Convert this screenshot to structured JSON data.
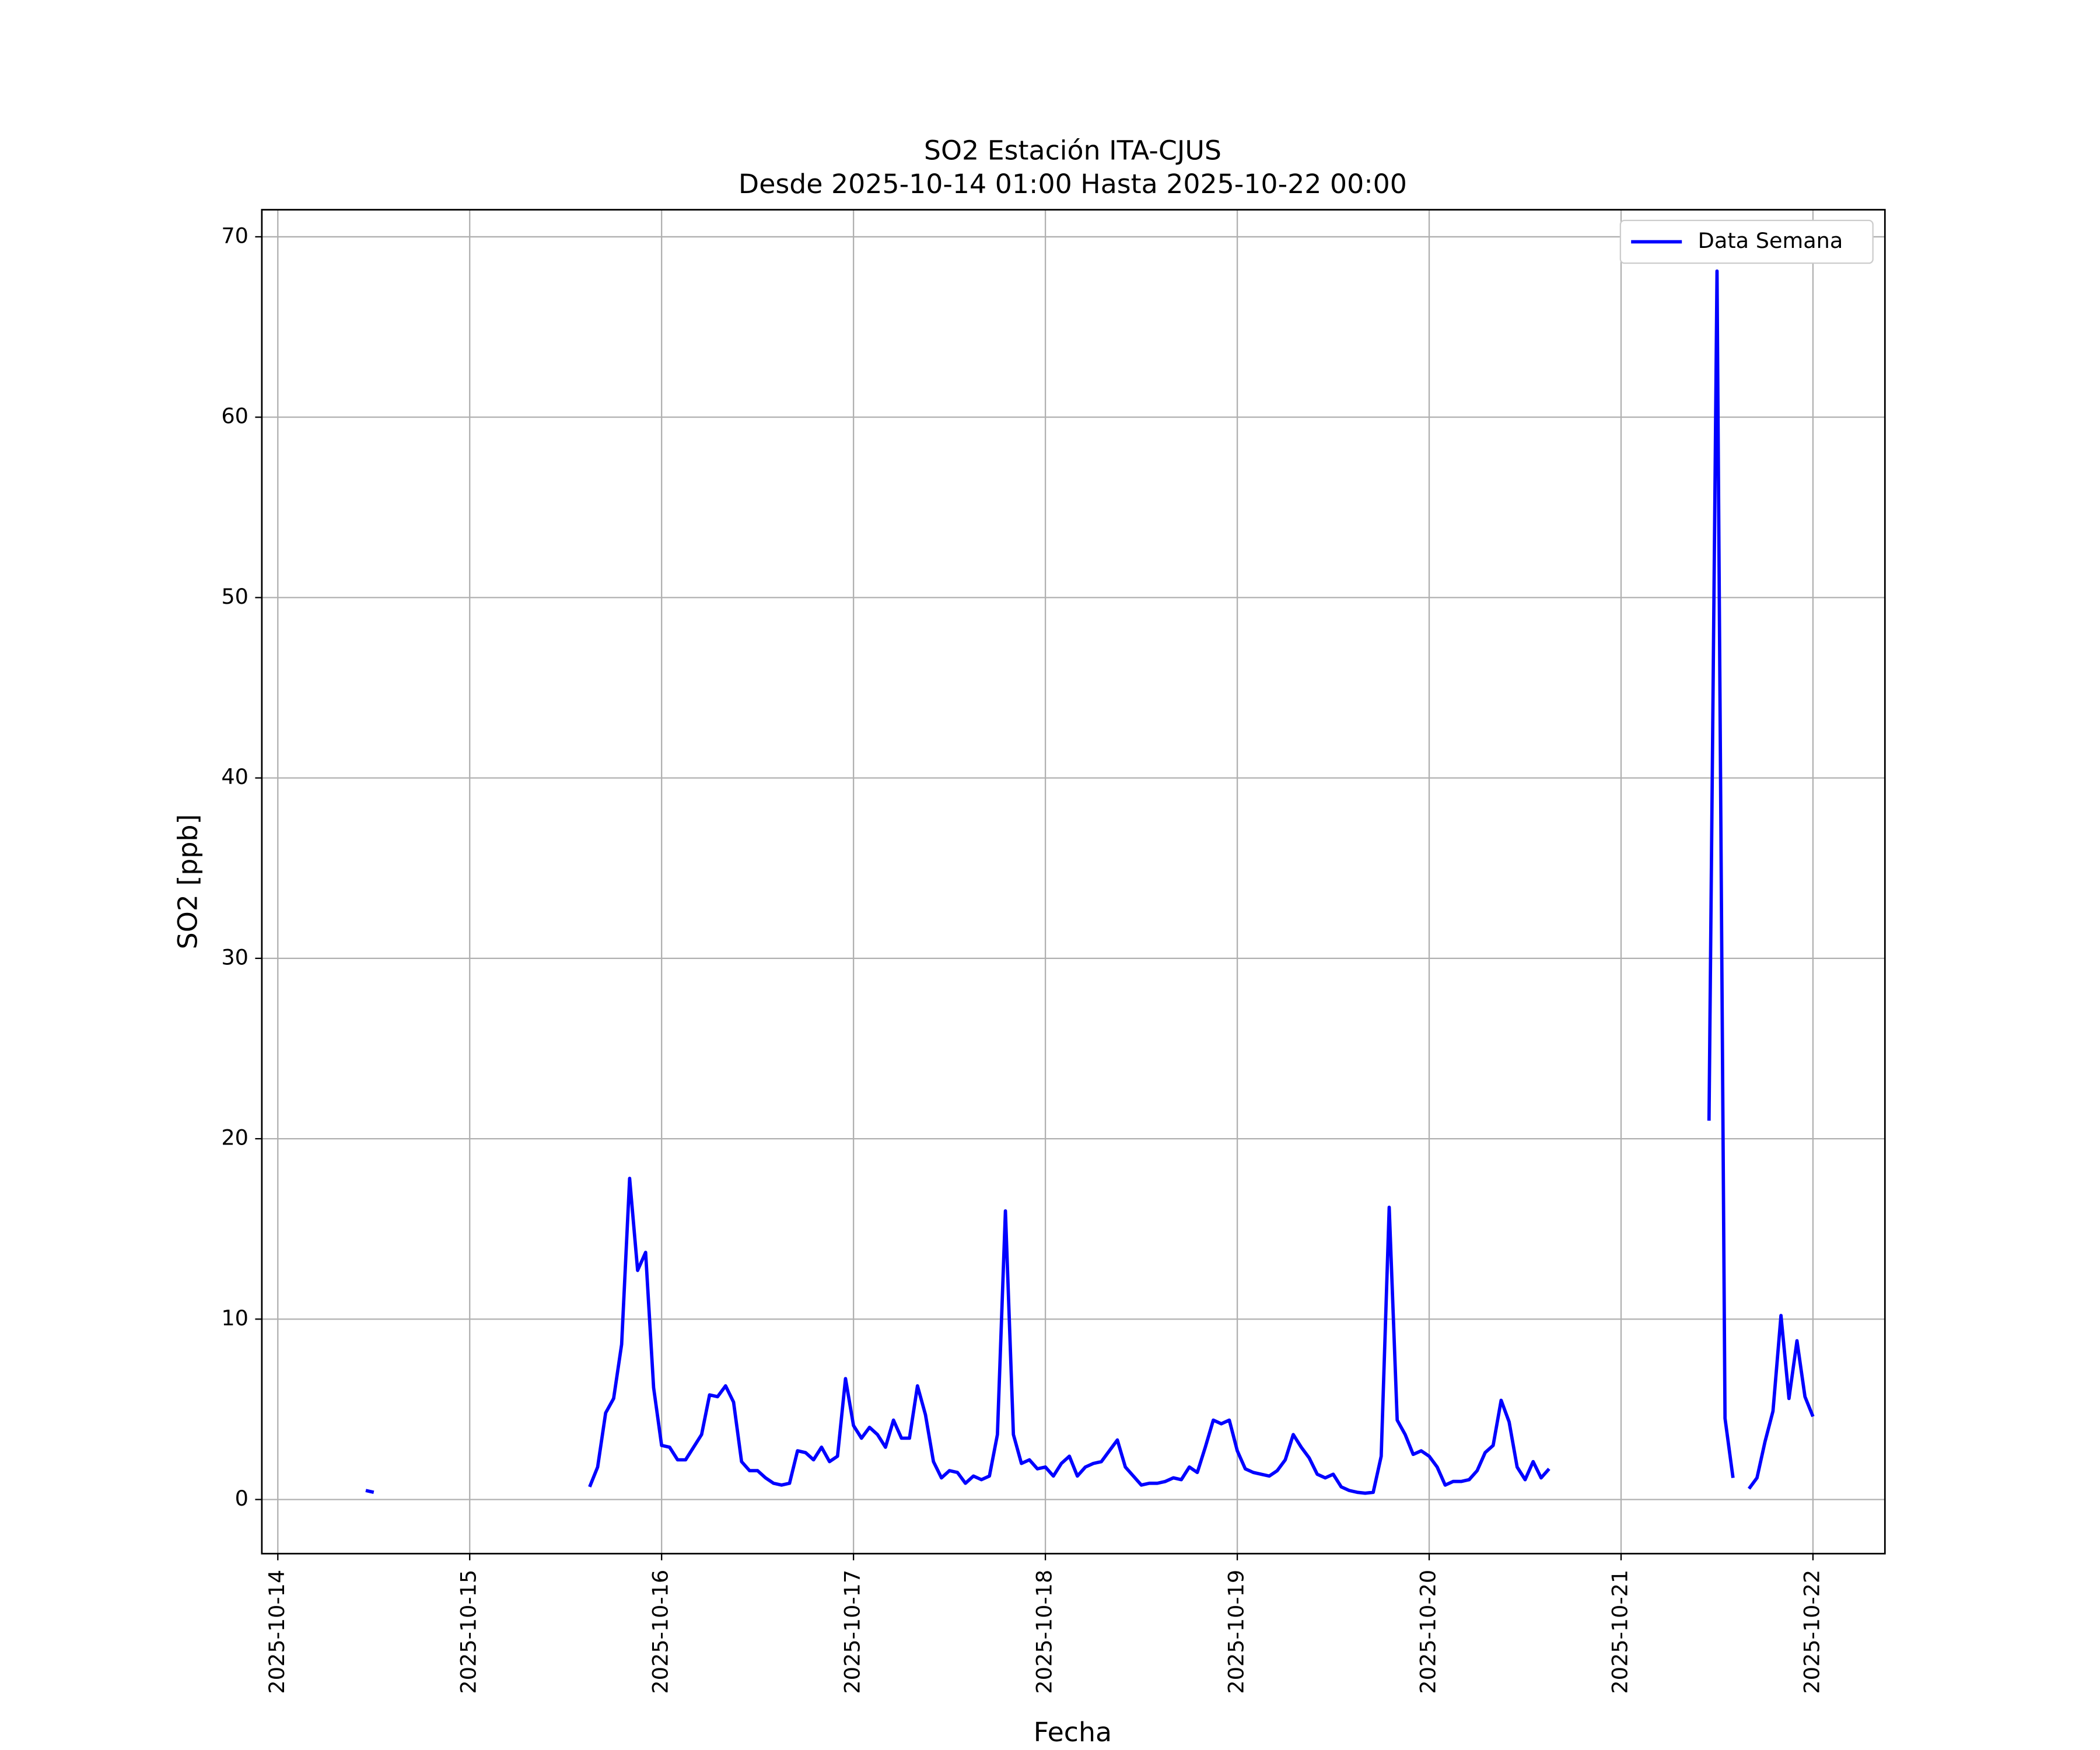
{
  "chart_data": {
    "type": "line",
    "title": "SO2 Estación ITA-CJUS",
    "subtitle": "Desde 2025-10-14 01:00 Hasta 2025-10-22 00:00",
    "xlabel": "Fecha",
    "ylabel": "SO2 [ppb]",
    "x": [
      "2025-10-14 11:00",
      "2025-10-14 12:00",
      "2025-10-14 13:00",
      "2025-10-15 15:00",
      "2025-10-15 16:00",
      "2025-10-15 17:00",
      "2025-10-15 18:00",
      "2025-10-15 19:00",
      "2025-10-15 20:00",
      "2025-10-15 21:00",
      "2025-10-15 22:00",
      "2025-10-15 23:00",
      "2025-10-16 00:00",
      "2025-10-16 01:00",
      "2025-10-16 02:00",
      "2025-10-16 03:00",
      "2025-10-16 04:00",
      "2025-10-16 05:00",
      "2025-10-16 06:00",
      "2025-10-16 07:00",
      "2025-10-16 08:00",
      "2025-10-16 09:00",
      "2025-10-16 10:00",
      "2025-10-16 11:00",
      "2025-10-16 12:00",
      "2025-10-16 13:00",
      "2025-10-16 14:00",
      "2025-10-16 15:00",
      "2025-10-16 16:00",
      "2025-10-16 17:00",
      "2025-10-16 18:00",
      "2025-10-16 19:00",
      "2025-10-16 20:00",
      "2025-10-16 21:00",
      "2025-10-16 22:00",
      "2025-10-16 23:00",
      "2025-10-17 00:00",
      "2025-10-17 01:00",
      "2025-10-17 02:00",
      "2025-10-17 03:00",
      "2025-10-17 04:00",
      "2025-10-17 05:00",
      "2025-10-17 06:00",
      "2025-10-17 07:00",
      "2025-10-17 08:00",
      "2025-10-17 09:00",
      "2025-10-17 10:00",
      "2025-10-17 11:00",
      "2025-10-17 12:00",
      "2025-10-17 13:00",
      "2025-10-17 14:00",
      "2025-10-17 15:00",
      "2025-10-17 16:00",
      "2025-10-17 17:00",
      "2025-10-17 18:00",
      "2025-10-17 19:00",
      "2025-10-17 20:00",
      "2025-10-17 21:00",
      "2025-10-17 22:00",
      "2025-10-17 23:00",
      "2025-10-18 00:00",
      "2025-10-18 01:00",
      "2025-10-18 02:00",
      "2025-10-18 03:00",
      "2025-10-18 04:00",
      "2025-10-18 05:00",
      "2025-10-18 06:00",
      "2025-10-18 07:00",
      "2025-10-18 08:00",
      "2025-10-18 09:00",
      "2025-10-18 10:00",
      "2025-10-18 11:00",
      "2025-10-18 12:00",
      "2025-10-18 13:00",
      "2025-10-18 14:00",
      "2025-10-18 15:00",
      "2025-10-18 16:00",
      "2025-10-18 17:00",
      "2025-10-18 18:00",
      "2025-10-18 19:00",
      "2025-10-18 20:00",
      "2025-10-18 21:00",
      "2025-10-18 22:00",
      "2025-10-18 23:00",
      "2025-10-19 00:00",
      "2025-10-19 01:00",
      "2025-10-19 02:00",
      "2025-10-19 03:00",
      "2025-10-19 04:00",
      "2025-10-19 05:00",
      "2025-10-19 06:00",
      "2025-10-19 07:00",
      "2025-10-19 08:00",
      "2025-10-19 09:00",
      "2025-10-19 10:00",
      "2025-10-19 11:00",
      "2025-10-19 12:00",
      "2025-10-19 13:00",
      "2025-10-19 14:00",
      "2025-10-19 15:00",
      "2025-10-19 16:00",
      "2025-10-19 17:00",
      "2025-10-19 18:00",
      "2025-10-19 19:00",
      "2025-10-19 20:00",
      "2025-10-19 21:00",
      "2025-10-19 22:00",
      "2025-10-19 23:00",
      "2025-10-20 00:00",
      "2025-10-20 01:00",
      "2025-10-20 02:00",
      "2025-10-20 03:00",
      "2025-10-20 04:00",
      "2025-10-20 05:00",
      "2025-10-20 06:00",
      "2025-10-20 07:00",
      "2025-10-20 08:00",
      "2025-10-20 09:00",
      "2025-10-20 10:00",
      "2025-10-20 11:00",
      "2025-10-20 12:00",
      "2025-10-20 13:00",
      "2025-10-20 14:00",
      "2025-10-20 15:00",
      "2025-10-20 16:00",
      "2025-10-21 11:00",
      "2025-10-21 12:00",
      "2025-10-21 13:00",
      "2025-10-21 14:00",
      "2025-10-21 15:00",
      "2025-10-21 16:00",
      "2025-10-21 17:00",
      "2025-10-21 18:00",
      "2025-10-21 19:00",
      "2025-10-21 20:00",
      "2025-10-21 21:00",
      "2025-10-21 22:00",
      "2025-10-21 23:00",
      "2025-10-22 00:00"
    ],
    "series": [
      {
        "name": "Data Semana",
        "color": "#0000ff",
        "values": [
          0.5,
          0.4,
          null,
          0.7,
          1.8,
          4.8,
          5.6,
          8.6,
          17.8,
          12.7,
          13.7,
          6.2,
          3.0,
          2.9,
          2.2,
          2.2,
          2.9,
          3.6,
          5.8,
          5.7,
          6.3,
          5.4,
          2.1,
          1.6,
          1.6,
          1.2,
          0.9,
          0.8,
          0.9,
          2.7,
          2.6,
          2.2,
          2.9,
          2.1,
          2.4,
          6.7,
          4.1,
          3.4,
          4.0,
          3.6,
          2.9,
          4.4,
          3.4,
          3.4,
          6.3,
          4.7,
          2.1,
          1.2,
          1.6,
          1.5,
          0.9,
          1.3,
          1.1,
          1.3,
          3.6,
          16.0,
          3.6,
          2.0,
          2.2,
          1.7,
          1.8,
          1.3,
          2.0,
          2.4,
          1.3,
          1.8,
          2.0,
          2.1,
          2.7,
          3.3,
          1.8,
          1.3,
          0.8,
          0.9,
          0.9,
          1.0,
          1.2,
          1.1,
          1.8,
          1.5,
          2.9,
          4.4,
          4.2,
          4.4,
          2.7,
          1.7,
          1.5,
          1.4,
          1.3,
          1.6,
          2.2,
          3.6,
          2.9,
          2.3,
          1.4,
          1.2,
          1.4,
          0.7,
          0.5,
          0.4,
          0.35,
          0.4,
          2.4,
          16.2,
          4.4,
          3.6,
          2.5,
          2.7,
          2.4,
          1.8,
          0.8,
          1.0,
          1.0,
          1.1,
          1.6,
          2.6,
          3.0,
          5.5,
          4.3,
          1.8,
          1.1,
          2.1,
          1.2,
          1.7,
          null,
          21.0,
          68.1,
          4.5,
          1.2,
          null,
          0.6,
          1.2,
          3.2,
          4.9,
          10.2,
          5.6,
          8.8,
          5.7,
          4.6
        ]
      }
    ],
    "xlim": [
      "2025-10-13 22:00",
      "2025-10-22 09:00"
    ],
    "xticks": [
      "2025-10-14",
      "2025-10-15",
      "2025-10-16",
      "2025-10-17",
      "2025-10-18",
      "2025-10-19",
      "2025-10-20",
      "2025-10-21",
      "2025-10-22"
    ],
    "ylim": [
      -3,
      71.5
    ],
    "yticks": [
      0,
      10,
      20,
      30,
      40,
      50,
      60,
      70
    ],
    "grid": true,
    "legend": "upper right"
  }
}
